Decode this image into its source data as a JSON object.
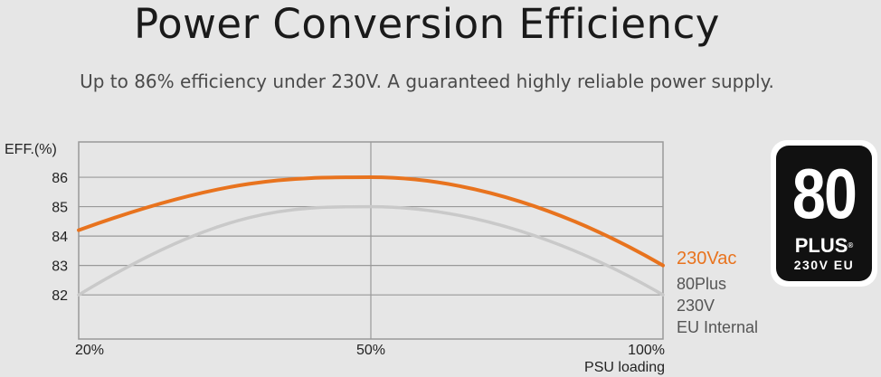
{
  "header": {
    "title": "Power Conversion Efficiency",
    "subtitle": "Up to 86% efficiency under 230V. A guaranteed highly reliable power supply."
  },
  "badge": {
    "number": "80",
    "plus": "PLUS",
    "registered": "®",
    "region": "230V EU"
  },
  "colors": {
    "series_230vac": "#e8731e",
    "series_80plus": "#c9c9c9",
    "grid": "#999999",
    "frame": "#999999",
    "plot_background": "#e6e6e6"
  },
  "chart_data": {
    "type": "line",
    "ylabel": "EFF.(%)",
    "xlabel": "PSU loading",
    "x_ticks": [
      "20%",
      "50%",
      "100%"
    ],
    "y_ticks": [
      82,
      83,
      84,
      85,
      86
    ],
    "ylim": [
      80.5,
      87.2
    ],
    "grid": true,
    "series": [
      {
        "name": "230Vac",
        "label_lines": [
          "230Vac"
        ],
        "color": "#e8731e",
        "points": [
          [
            "20%",
            84.2
          ],
          [
            "50%",
            86
          ],
          [
            "100%",
            83
          ]
        ]
      },
      {
        "name": "80Plus 230V EU Internal",
        "label_lines": [
          "80Plus",
          "230V",
          "EU Internal"
        ],
        "color": "#c9c9c9",
        "points": [
          [
            "20%",
            82
          ],
          [
            "50%",
            85
          ],
          [
            "100%",
            82
          ]
        ]
      }
    ]
  }
}
